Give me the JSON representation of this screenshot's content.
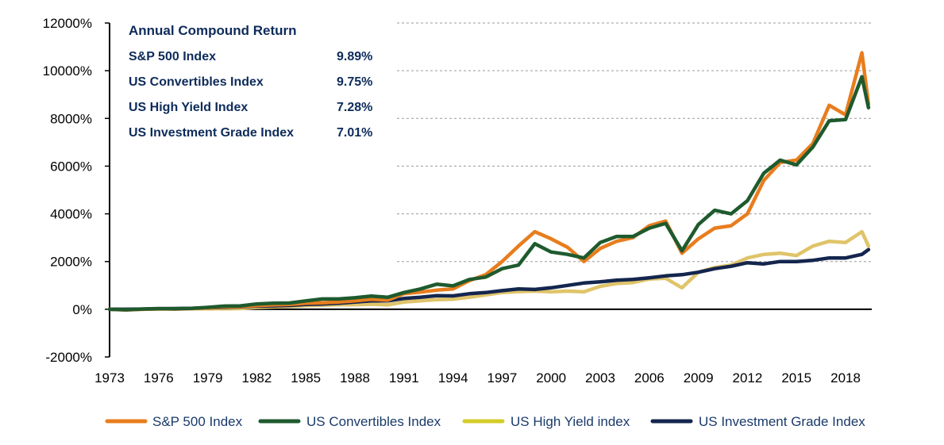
{
  "chart_data": {
    "type": "line",
    "title": "",
    "xlabel": "",
    "ylabel": "",
    "ylim": [
      -2000,
      12000
    ],
    "xlim": [
      1973,
      2019.6
    ],
    "yticks": [
      -2000,
      0,
      2000,
      4000,
      6000,
      8000,
      10000,
      12000
    ],
    "ytick_labels": [
      "-2000%",
      "0%",
      "2000%",
      "4000%",
      "6000%",
      "8000%",
      "10000%",
      "12000%"
    ],
    "xticks": [
      1973,
      1976,
      1979,
      1982,
      1985,
      1988,
      1991,
      1994,
      1997,
      2000,
      2003,
      2006,
      2009,
      2012,
      2015,
      2018
    ],
    "xtick_labels": [
      "1973",
      "1976",
      "1979",
      "1982",
      "1985",
      "1988",
      "1991",
      "1994",
      "1997",
      "2000",
      "2003",
      "2006",
      "2009",
      "2012",
      "2015",
      "2018"
    ],
    "grid": "horizontal dashed",
    "legend_position": "bottom",
    "x": [
      1973,
      1974,
      1975,
      1976,
      1977,
      1978,
      1979,
      1980,
      1981,
      1982,
      1983,
      1984,
      1985,
      1986,
      1987,
      1988,
      1989,
      1990,
      1991,
      1992,
      1993,
      1994,
      1995,
      1996,
      1997,
      1998,
      1999,
      2000,
      2001,
      2002,
      2003,
      2004,
      2005,
      2006,
      2007,
      2008,
      2009,
      2010,
      2011,
      2012,
      2013,
      2014,
      2015,
      2016,
      2017,
      2018,
      2019,
      2019.4
    ],
    "series": [
      {
        "name": "S&P 500 Index",
        "color": "#e87d1e",
        "values": [
          0,
          -30,
          0,
          20,
          10,
          30,
          60,
          100,
          110,
          150,
          180,
          200,
          250,
          270,
          300,
          350,
          420,
          380,
          650,
          720,
          800,
          850,
          1200,
          1450,
          2000,
          2650,
          3250,
          2950,
          2600,
          2000,
          2550,
          2850,
          3000,
          3500,
          3700,
          2350,
          2950,
          3400,
          3500,
          4000,
          5400,
          6150,
          6250,
          6950,
          8550,
          8150,
          10750,
          8600
        ]
      },
      {
        "name": "US Convertibles Index",
        "color": "#1e5a2e",
        "values": [
          0,
          -20,
          10,
          30,
          20,
          40,
          80,
          130,
          140,
          220,
          250,
          260,
          350,
          430,
          430,
          480,
          550,
          500,
          700,
          850,
          1050,
          980,
          1250,
          1350,
          1700,
          1850,
          2750,
          2400,
          2300,
          2150,
          2800,
          3050,
          3050,
          3400,
          3600,
          2450,
          3550,
          4150,
          4000,
          4550,
          5700,
          6250,
          6050,
          6800,
          7900,
          7950,
          9750,
          8450
        ]
      },
      {
        "name": "US High Yield index",
        "color": "#e0c46a",
        "values": [
          0,
          -10,
          0,
          10,
          20,
          30,
          20,
          20,
          30,
          80,
          100,
          120,
          150,
          170,
          190,
          190,
          210,
          180,
          300,
          350,
          400,
          420,
          500,
          600,
          700,
          740,
          760,
          730,
          760,
          730,
          960,
          1080,
          1120,
          1270,
          1300,
          900,
          1550,
          1750,
          1850,
          2150,
          2300,
          2350,
          2250,
          2650,
          2850,
          2800,
          3250,
          2650
        ]
      },
      {
        "name": "US Investment Grade Index",
        "color": "#14264e",
        "values": [
          0,
          0,
          10,
          20,
          30,
          40,
          60,
          80,
          100,
          130,
          140,
          160,
          200,
          220,
          250,
          300,
          350,
          350,
          450,
          500,
          570,
          560,
          650,
          700,
          780,
          850,
          830,
          900,
          1000,
          1100,
          1150,
          1220,
          1250,
          1320,
          1400,
          1450,
          1550,
          1700,
          1800,
          1950,
          1900,
          2000,
          2000,
          2050,
          2150,
          2150,
          2300,
          2500
        ]
      }
    ],
    "annotation": {
      "title": "Annual Compound Return",
      "rows": [
        {
          "label": "S&P 500 Index",
          "value": "9.89%"
        },
        {
          "label": "US Convertibles Index",
          "value": "9.75%"
        },
        {
          "label": "US High Yield Index",
          "value": "7.28%"
        },
        {
          "label": "US Investment Grade Index",
          "value": "7.01%"
        }
      ]
    },
    "legend_items": [
      {
        "label": "S&P 500 Index",
        "color": "#e87d1e"
      },
      {
        "label": "US Convertibles Index",
        "color": "#1e5a2e"
      },
      {
        "label": "US High Yield index",
        "color": "#d4cc2a"
      },
      {
        "label": "US Investment Grade Index",
        "color": "#14264e"
      }
    ]
  }
}
